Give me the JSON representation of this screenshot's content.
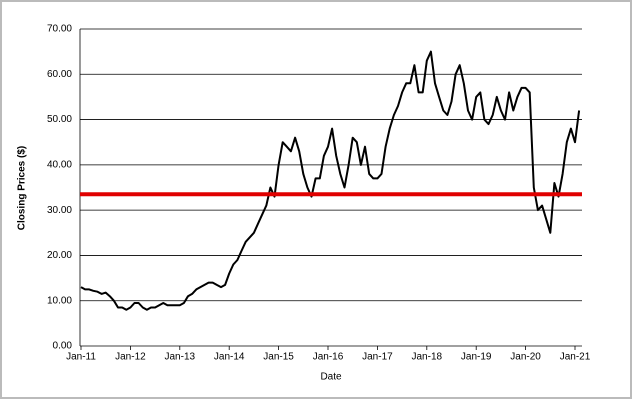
{
  "chart_data": {
    "type": "line",
    "y_axis_label": "Closing Prices ($)",
    "x_axis_label": "Date",
    "categories": [
      "Jan-11",
      null,
      null,
      null,
      null,
      null,
      null,
      null,
      null,
      null,
      null,
      null,
      "Jan-12",
      null,
      null,
      null,
      null,
      null,
      null,
      null,
      null,
      null,
      null,
      null,
      "Jan-13",
      null,
      null,
      null,
      null,
      null,
      null,
      null,
      null,
      null,
      null,
      null,
      "Jan-14",
      null,
      null,
      null,
      null,
      null,
      null,
      null,
      null,
      null,
      null,
      null,
      "Jan-15",
      null,
      null,
      null,
      null,
      null,
      null,
      null,
      null,
      null,
      null,
      null,
      "Jan-16",
      null,
      null,
      null,
      null,
      null,
      null,
      null,
      null,
      null,
      null,
      null,
      "Jan-17",
      null,
      null,
      null,
      null,
      null,
      null,
      null,
      null,
      null,
      null,
      null,
      "Jan-18",
      null,
      null,
      null,
      null,
      null,
      null,
      null,
      null,
      null,
      null,
      null,
      "Jan-19",
      null,
      null,
      null,
      null,
      null,
      null,
      null,
      null,
      null,
      null,
      null,
      "Jan-20",
      null,
      null,
      null,
      null,
      null,
      null,
      null,
      null,
      null,
      null,
      null,
      "Jan-21",
      null
    ],
    "values": [
      13,
      12.5,
      12.5,
      12.2,
      12,
      11.5,
      11.8,
      11,
      10,
      8.5,
      8.5,
      8,
      8.5,
      9.5,
      9.5,
      8.5,
      8,
      8.5,
      8.5,
      9,
      9.5,
      9,
      9,
      9,
      9,
      9.5,
      11,
      11.5,
      12.5,
      13,
      13.5,
      14,
      14,
      13.5,
      13,
      13.5,
      16,
      18,
      19,
      21,
      23,
      24,
      25,
      27,
      29,
      31,
      35,
      33,
      40,
      45,
      44,
      43,
      46,
      43,
      38,
      35,
      33,
      37,
      37,
      42,
      44,
      48,
      42,
      38,
      35,
      40,
      46,
      45,
      40,
      44,
      38,
      37,
      37,
      38,
      44,
      48,
      51,
      53,
      56,
      58,
      58,
      62,
      56,
      56,
      63,
      65,
      58,
      55,
      52,
      51,
      54,
      60,
      62,
      58,
      52,
      50,
      55,
      56,
      50,
      49,
      51,
      55,
      52,
      50,
      56,
      52,
      55,
      57,
      57,
      56,
      35,
      30,
      31,
      28,
      25,
      36,
      33,
      38,
      45,
      48,
      45,
      52
    ],
    "color": "#000000",
    "reference_line": {
      "value": 33.5,
      "color": "#e00000"
    },
    "ylim": [
      0,
      70
    ],
    "yticks": [
      {
        "value": 0,
        "label": "0.00"
      },
      {
        "value": 10,
        "label": "10.00"
      },
      {
        "value": 20,
        "label": "20.00"
      },
      {
        "value": 30,
        "label": "30.00"
      },
      {
        "value": 40,
        "label": "40.00"
      },
      {
        "value": 50,
        "label": "50.00"
      },
      {
        "value": 60,
        "label": "60.00"
      },
      {
        "value": 70,
        "label": "70.00"
      }
    ],
    "grid": true
  }
}
